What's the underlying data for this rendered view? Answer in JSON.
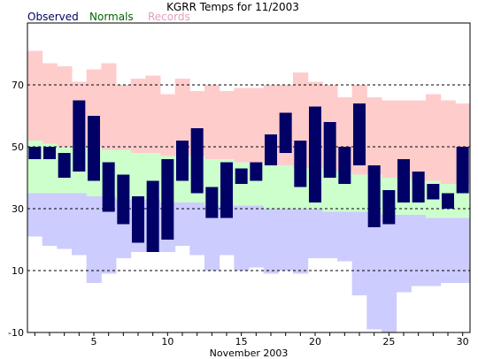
{
  "chart_data": {
    "type": "bar",
    "title": "KGRR Temps for 11/2003",
    "xlabel": "November 2003",
    "ylabel": "",
    "xlim": [
      0.5,
      30.5
    ],
    "ylim": [
      -10,
      90
    ],
    "y_ticks": [
      -10,
      10,
      30,
      50,
      70
    ],
    "x_ticks": [
      5,
      10,
      15,
      20,
      25,
      30
    ],
    "grid": "horizontal dashed at 10, 30, 50, 70",
    "legend": {
      "placement": "top-left",
      "entries": [
        {
          "name": "Observed",
          "color": "#000066"
        },
        {
          "name": "Normals",
          "color": "#006600"
        },
        {
          "name": "Records",
          "color": "#e0a0c0"
        }
      ]
    },
    "colors": {
      "observed": "#000066",
      "normals": "#ccffcc",
      "records_high": "#ffcccc",
      "records_low": "#ccccff"
    },
    "days": [
      1,
      2,
      3,
      4,
      5,
      6,
      7,
      8,
      9,
      10,
      11,
      12,
      13,
      14,
      15,
      16,
      17,
      18,
      19,
      20,
      21,
      22,
      23,
      24,
      25,
      26,
      27,
      28,
      29,
      30
    ],
    "observed_high": [
      50,
      50,
      48,
      65,
      60,
      45,
      41,
      34,
      39,
      46,
      52,
      56,
      37,
      45,
      43,
      45,
      54,
      61,
      52,
      63,
      58,
      50,
      64,
      44,
      36,
      46,
      42,
      38,
      35,
      50
    ],
    "observed_low": [
      46,
      46,
      40,
      42,
      39,
      29,
      25,
      19,
      16,
      20,
      39,
      35,
      27,
      27,
      38,
      39,
      44,
      48,
      37,
      32,
      40,
      38,
      44,
      24,
      25,
      32,
      32,
      33,
      30,
      35
    ],
    "normal_high": [
      52,
      51,
      50,
      50,
      50,
      49,
      49,
      48,
      48,
      47,
      47,
      47,
      46,
      46,
      45,
      45,
      44,
      44,
      43,
      43,
      42,
      42,
      41,
      41,
      40,
      40,
      39,
      39,
      38,
      38
    ],
    "normal_low": [
      35,
      35,
      35,
      35,
      34,
      34,
      33,
      33,
      33,
      32,
      32,
      32,
      31,
      31,
      31,
      31,
      30,
      30,
      30,
      30,
      29,
      29,
      29,
      29,
      28,
      28,
      28,
      27,
      27,
      27
    ],
    "record_high": [
      81,
      77,
      76,
      71,
      75,
      77,
      70,
      72,
      73,
      67,
      72,
      68,
      70,
      68,
      69,
      69,
      70,
      70,
      74,
      71,
      70,
      66,
      70,
      66,
      65,
      65,
      65,
      67,
      65,
      64
    ],
    "record_low": [
      21,
      18,
      17,
      15,
      6,
      9,
      14,
      16,
      16,
      16,
      18,
      15,
      10,
      15,
      10,
      11,
      9,
      10,
      9,
      14,
      14,
      13,
      2,
      -9,
      -10,
      3,
      5,
      5,
      6,
      6
    ]
  }
}
